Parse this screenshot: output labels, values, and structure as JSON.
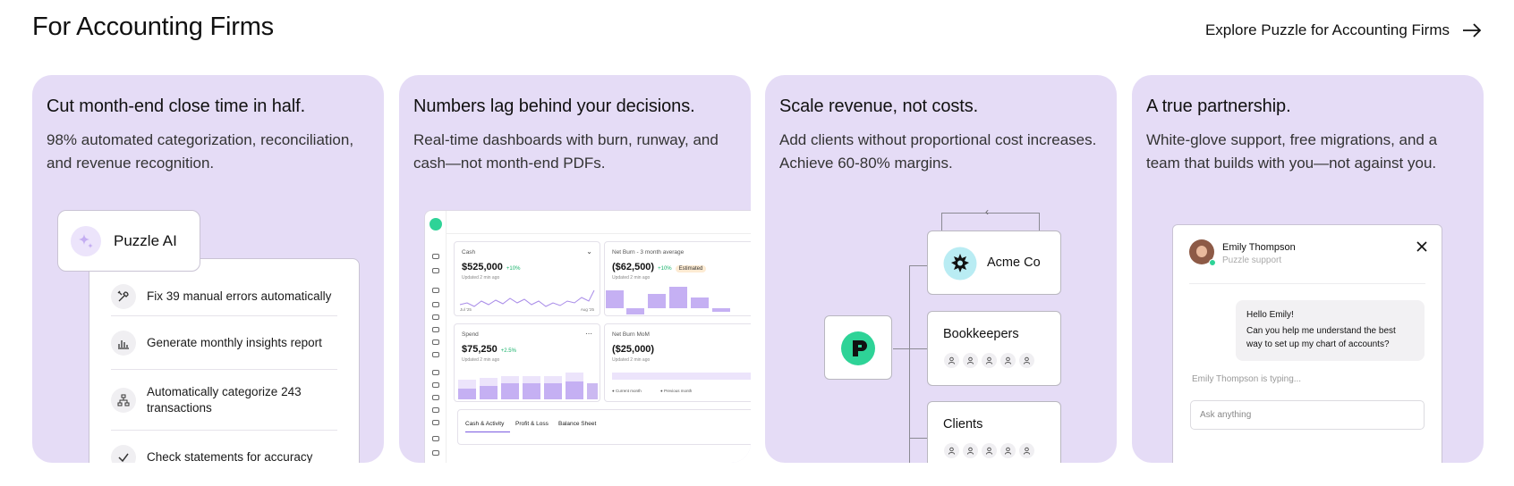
{
  "header": {
    "title": "For Accounting Firms",
    "explore_label": "Explore Puzzle for Accounting Firms"
  },
  "colors": {
    "card_bg": "#e5dcf6",
    "accent_green": "#2ed397",
    "accent_purple": "#c5b0f3"
  },
  "cards": [
    {
      "title": "Cut month-end close time in half.",
      "description": "98% automated categorization, reconciliation, and revenue recognition.",
      "badge": "Puzzle AI",
      "items": [
        {
          "icon": "tools-icon",
          "label": "Fix 39 manual errors automatically"
        },
        {
          "icon": "bar-chart-icon",
          "label": "Generate monthly insights report"
        },
        {
          "icon": "hierarchy-icon",
          "label": "Automatically categorize 243 transactions"
        },
        {
          "icon": "check-icon",
          "label": "Check statements for accuracy"
        }
      ]
    },
    {
      "title": "Numbers lag behind your decisions.",
      "description": "Real-time dashboards with burn, runway, and cash—not month-end PDFs.",
      "dashboard": {
        "cash": {
          "label": "Cash",
          "value": "$525,000",
          "change": "10%",
          "updated": "Updated 2 min ago",
          "x_start": "Jul '25",
          "x_end": "Aug '25"
        },
        "burn": {
          "label": "Net Burn - 3 month average",
          "value": "($62,500)",
          "change": "10%",
          "badge": "Estimated",
          "updated": "Updated 2 min ago"
        },
        "spend": {
          "label": "Spend",
          "value": "$75,250",
          "change": "2.5%",
          "updated": "Updated 2 min ago"
        },
        "burn_mom": {
          "label": "Net Burn MoM",
          "value": "($25,000)",
          "updated": "Updated 2 min ago",
          "legend_current": "Current month",
          "legend_previous": "Previous month"
        },
        "tabs": [
          "Cash & Activity",
          "Profit & Loss",
          "Balance Sheet"
        ]
      }
    },
    {
      "title": "Scale revenue,  not costs.",
      "description": "Add clients without proportional cost increases. Achieve 60-80% margins.",
      "org": {
        "client_name": "Acme Co",
        "group1": "Bookkeepers",
        "group2": "Clients"
      }
    },
    {
      "title": "A true partnership.",
      "description": "White-glove support, free migrations, and a team that builds with you—not against you.",
      "chat": {
        "name": "Emily Thompson",
        "role": "Puzzle support",
        "greeting": "Hello Emily!",
        "message": "Can you help me understand the best way to set up my chart of accounts?",
        "typing": "Emily Thompson is typing...",
        "placeholder": "Ask anything"
      }
    }
  ]
}
